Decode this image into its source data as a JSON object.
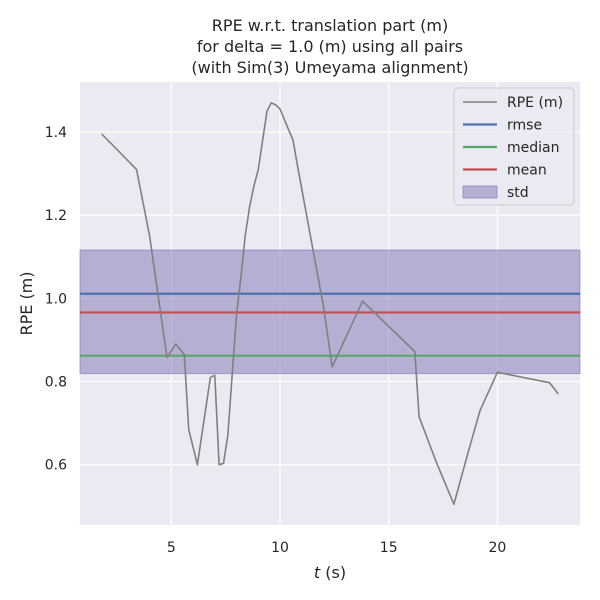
{
  "chart_data": {
    "type": "line",
    "title_lines": [
      "RPE w.r.t. translation part (m)",
      "for delta = 1.0 (m) using all pairs",
      "(with Sim(3) Umeyama alignment)"
    ],
    "xlabel_italic": "t",
    "xlabel_unit": " (s)",
    "ylabel": "RPE (m)",
    "xlim": [
      0.8,
      23.8
    ],
    "ylim": [
      0.455,
      1.52
    ],
    "xticks": [
      5,
      10,
      15,
      20
    ],
    "xtick_labels": [
      "5",
      "10",
      "15",
      "20"
    ],
    "yticks": [
      0.6,
      0.8,
      1.0,
      1.2,
      1.4
    ],
    "ytick_labels": [
      "0.6",
      "0.8",
      "1.0",
      "1.2",
      "1.4"
    ],
    "grid": true,
    "legend_position": "top-right",
    "series": [
      {
        "name": "RPE (m)",
        "color": "#808080",
        "x": [
          1.8,
          3.4,
          4.0,
          4.8,
          5.2,
          5.6,
          5.8,
          6.2,
          6.8,
          7.0,
          7.2,
          7.4,
          7.6,
          8.0,
          8.2,
          8.4,
          8.6,
          8.8,
          9.0,
          9.4,
          9.6,
          9.8,
          10.0,
          10.6,
          10.8,
          11.4,
          12.0,
          12.4,
          13.8,
          16.2,
          16.4,
          17.2,
          17.6,
          18.0,
          18.6,
          19.2,
          20.0,
          22.4,
          22.8
        ],
        "y": [
          1.395,
          1.31,
          1.15,
          0.858,
          0.89,
          0.865,
          0.685,
          0.6,
          0.81,
          0.815,
          0.6,
          0.603,
          0.67,
          0.96,
          1.05,
          1.15,
          1.22,
          1.27,
          1.31,
          1.45,
          1.47,
          1.465,
          1.455,
          1.38,
          1.32,
          1.15,
          0.98,
          0.835,
          0.993,
          0.872,
          0.715,
          0.605,
          0.555,
          0.505,
          0.62,
          0.73,
          0.822,
          0.797,
          0.77
        ]
      }
    ],
    "stats": {
      "rmse": {
        "name": "rmse",
        "value": 1.011,
        "color": "#4c72b0"
      },
      "median": {
        "name": "median",
        "value": 0.862,
        "color": "#55a868"
      },
      "mean": {
        "name": "mean",
        "value": 0.966,
        "color": "#c44e52"
      },
      "std": {
        "name": "std",
        "low": 0.819,
        "high": 1.116,
        "color": "#8172b3"
      }
    },
    "legend_items": [
      "RPE (m)",
      "rmse",
      "median",
      "mean",
      "std"
    ]
  }
}
